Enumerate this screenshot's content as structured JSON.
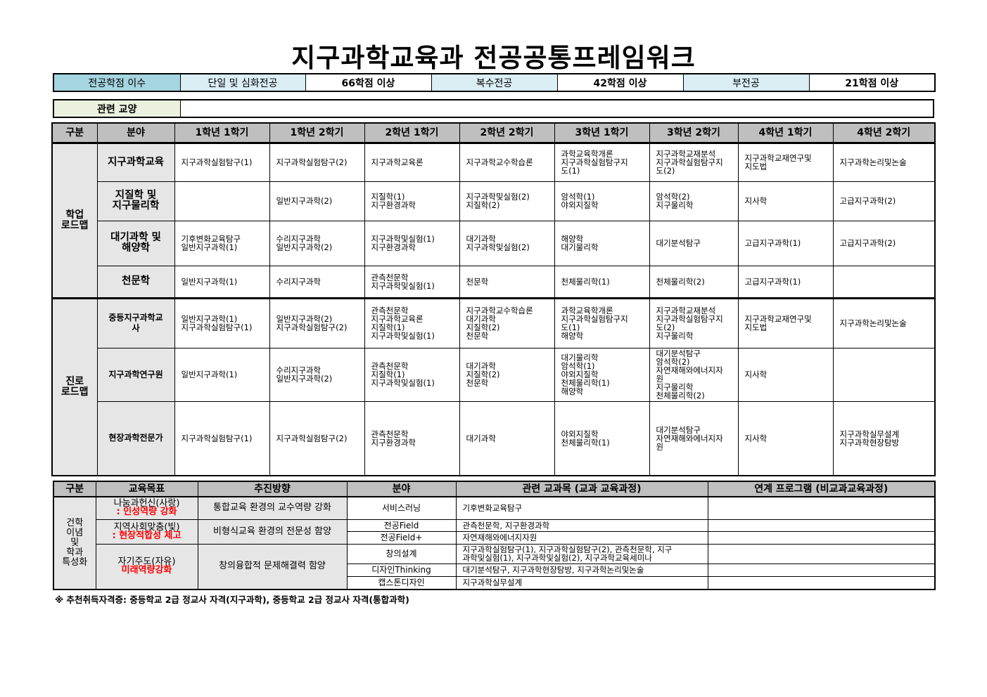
{
  "title": "지구과학교육과 전공공통프레임워크",
  "credits": {
    "label": "전공학점 이수",
    "items": [
      {
        "type": "단일 및 심화전공",
        "credits": "66학점 이상"
      },
      {
        "type": "복수전공",
        "credits": "42학점 이상"
      },
      {
        "type": "부전공",
        "credits": "21학점 이상"
      }
    ]
  },
  "related_liberal": {
    "label": "관련 교양",
    "value": ""
  },
  "roadmap": {
    "headers": [
      "구분",
      "분야",
      "1학년 1학기",
      "1학년 2학기",
      "2학년 1학기",
      "2학년 2학기",
      "3학년 1학기",
      "3학년 2학기",
      "4학년 1학기",
      "4학년 2학기"
    ],
    "groups": [
      {
        "name": "학업\n로드맵",
        "rows": [
          {
            "field": "지구과학교육",
            "cells": [
              "지구과학실험탐구(1)",
              "지구과학실험탐구(2)",
              "지구과학교육론",
              "지구과학교수학습론",
              "과학교육학개론\n지구과학실험탐구지\n도(1)",
              "지구과학교재분석\n지구과학실험탐구지\n도(2)",
              "지구과학교재연구및\n지도법",
              "지구과학논리및논술"
            ]
          },
          {
            "field": "지질학 및\n지구물리학",
            "cells": [
              "",
              "일반지구과학(2)",
              "지질학(1)\n지구환경과학",
              "지구과학및실험(2)\n지질학(2)",
              "암석학(1)\n야외지질학",
              "암석학(2)\n지구물리학",
              "지사학",
              "고급지구과학(2)"
            ]
          },
          {
            "field": "대기과학 및\n해양학",
            "cells": [
              "기후변화교육탐구\n일반지구과학(1)",
              "수리지구과학\n일반지구과학(2)",
              "지구과학및실험(1)\n지구환경과학",
              "대기과학\n지구과학및실험(2)",
              "해양학\n대기물리학",
              "대기분석탐구",
              "고급지구과학(1)",
              "고급지구과학(2)"
            ]
          },
          {
            "field": "천문학",
            "cells": [
              "일반지구과학(1)",
              "수리지구과학",
              "관측천문학\n지구과학및실험(1)",
              "천문학",
              "천체물리학(1)",
              "천체물리학(2)",
              "고급지구과학(1)",
              ""
            ]
          }
        ]
      },
      {
        "name": "진로\n로드맵",
        "rows": [
          {
            "field": "중등지구과학교\n사",
            "cells": [
              "일반지구과학(1)\n지구과학실험탐구(1)",
              "일반지구과학(2)\n지구과학실험탐구(2)",
              "관측천문학\n지구과학교육론\n지질학(1)\n지구과학및실험(1)",
              "지구과학교수학습론\n대기과학\n지질학(2)\n천문학",
              "과학교육학개론\n지구과학실험탐구지\n도(1)\n해양학",
              "지구과학교재분석\n지구과학실험탐구지\n도(2)\n지구물리학",
              "지구과학교재연구및\n지도법",
              "지구과학논리및논술"
            ]
          },
          {
            "field": "지구과학연구원",
            "cells": [
              "일반지구과학(1)",
              "수리지구과학\n일반지구과학(2)",
              "관측천문학\n지질학(1)\n지구과학및실험(1)",
              "대기과학\n지질학(2)\n천문학",
              "대기물리학\n암석학(1)\n야외지질학\n천체물리학(1)\n해양학",
              "대기분석탐구\n암석학(2)\n자연재해와에너지자\n원\n지구물리학\n천체물리학(2)",
              "지사학",
              ""
            ]
          },
          {
            "field": "현장과학전문가",
            "cells": [
              "지구과학실험탐구(1)",
              "지구과학실험탐구(2)",
              "관측천문학\n지구환경과학",
              "대기과학",
              "야외지질학\n천체물리학(1)",
              "대기분석탐구\n자연재해와에너지자\n원",
              "지사학",
              "지구과학실무설계\n지구과학현장탐방"
            ]
          }
        ]
      }
    ]
  },
  "philosophy": {
    "headers": [
      "구분",
      "교육목표",
      "추진방향",
      "분야",
      "관련 교과목 (교과 교육과정)",
      "연계 프로그램 (비교과교육과정)"
    ],
    "category": "건학\n이념\n및\n학과\n특성화",
    "goals": [
      {
        "goal": "나눔과헌신(사랑)",
        "goal_sub": ": 인성역량 강화",
        "direction": "통합교육 환경의 교수역량 강화",
        "fields": [
          {
            "field": "서비스러닝",
            "courses": "기후변화교육탐구",
            "program": ""
          }
        ]
      },
      {
        "goal": "지역사회맞춤(빛)",
        "goal_sub": ": 현장적합성 제고",
        "direction": "비형식교육 환경의 전문성 함양",
        "fields": [
          {
            "field": "전공Field",
            "courses": "관측천문학, 지구환경과학",
            "program": ""
          },
          {
            "field": "전공Field+",
            "courses": "자연재해와에너지자원",
            "program": ""
          }
        ]
      },
      {
        "goal": "자기주도(자유)",
        "goal_sub": "미래역량강화",
        "direction": "창의융합적 문제해결력 함양",
        "fields": [
          {
            "field": "창의설계",
            "courses": "지구과학실험탐구(1), 지구과학실험탐구(2), 관측천문학, 지구\n과학및실험(1), 지구과학및실험(2), 지구과학교육세미나",
            "program": ""
          },
          {
            "field": "디자인Thinking",
            "courses": "대기분석탐구, 지구과학현장탐방, 지구과학논리및논술",
            "program": ""
          },
          {
            "field": "캡스톤디자인",
            "courses": "지구과학실무설계",
            "program": ""
          }
        ]
      }
    ]
  },
  "footnote": "※ 추천취득자격증: 중등학교 2급 정교사 자격(지구과학), 중등학교 2급 정교사 자격(통합과학)",
  "colors": {
    "credit_label_bg": "#a5d5e0",
    "credit_type_bg": "#daeef3",
    "liberal_label_bg": "#ebf1de",
    "header_bg": "#bfbfbf",
    "side_bg": "#e6e6e6",
    "highlight_red": "#ff0000"
  }
}
